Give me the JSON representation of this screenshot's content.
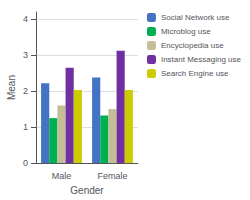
{
  "chart_data": {
    "type": "bar",
    "categories": [
      "Male",
      "Female"
    ],
    "series": [
      {
        "name": "Social Network use",
        "color": "#4472C4",
        "values": [
          2.22,
          2.38
        ]
      },
      {
        "name": "Microblog use",
        "color": "#00B050",
        "values": [
          1.25,
          1.32
        ]
      },
      {
        "name": "Encyclopedia use",
        "color": "#C4BD97",
        "values": [
          1.6,
          1.5
        ]
      },
      {
        "name": "Instant Messaging use",
        "color": "#7030A0",
        "values": [
          2.65,
          3.12
        ]
      },
      {
        "name": "Search Engine use",
        "color": "#CCCC00",
        "values": [
          2.03,
          2.03
        ]
      }
    ],
    "xlabel": "Gender",
    "ylabel": "Mean",
    "ylim": [
      0,
      4.2
    ],
    "yticks": [
      0,
      1,
      2,
      3,
      4
    ],
    "grid": true,
    "legend": "upper right"
  }
}
